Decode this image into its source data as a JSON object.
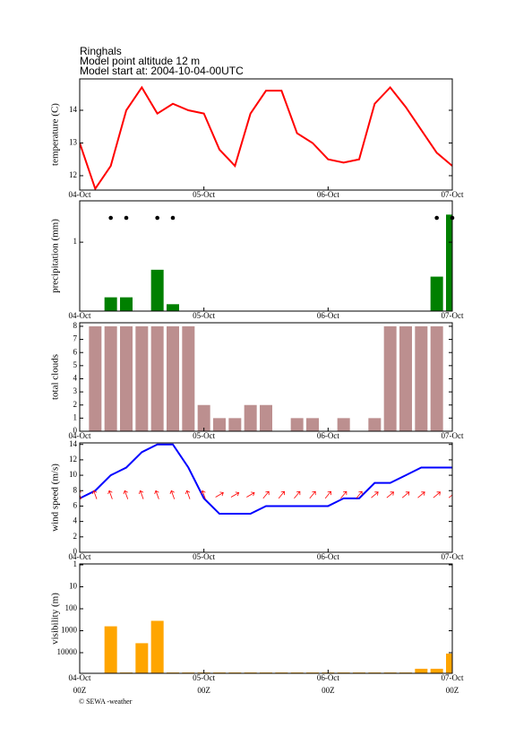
{
  "header": {
    "station": "Ringhals",
    "altitude": "Model point altitude  12 m",
    "start": "Model start at: 2004-10-04-00UTC"
  },
  "chart_data": [
    {
      "type": "line",
      "ylabel": "temperature (C)",
      "x": [
        0,
        3,
        6,
        9,
        12,
        15,
        18,
        21,
        24,
        27,
        30,
        33,
        36,
        39,
        42,
        45,
        48,
        51,
        54,
        57,
        60,
        63,
        66,
        69,
        72
      ],
      "values": [
        13.0,
        11.6,
        12.3,
        14.0,
        14.7,
        13.9,
        14.2,
        14.0,
        13.9,
        12.8,
        12.3,
        13.9,
        14.6,
        14.6,
        13.3,
        13.0,
        12.5,
        12.4,
        12.5,
        14.2,
        14.7,
        14.1,
        13.4,
        12.7,
        12.3
      ],
      "color": "#ff0000",
      "xlim": [
        0,
        72
      ],
      "xticks": [
        {
          "value": 0,
          "label": "04-Oct"
        },
        {
          "value": 24,
          "label": "05-Oct"
        },
        {
          "value": 48,
          "label": "06-Oct"
        },
        {
          "value": 72,
          "label": "07-Oct"
        }
      ],
      "ylim": [
        11.56,
        14.96
      ],
      "yticks": [
        12,
        13,
        14
      ]
    },
    {
      "type": "bar",
      "ylabel": "precipitation (mm)",
      "x": [
        6,
        9,
        15,
        18,
        69,
        72
      ],
      "values": [
        0.2,
        0.2,
        0.6,
        0.1,
        0.5,
        1.4
      ],
      "color": "#008000",
      "markers": true,
      "marker_color": "#000000",
      "xlim": [
        0,
        72
      ],
      "xticks": [
        {
          "value": 0,
          "label": "04-Oct"
        },
        {
          "value": 24,
          "label": "05-Oct"
        },
        {
          "value": 48,
          "label": "06-Oct"
        },
        {
          "value": 72,
          "label": "07-Oct"
        }
      ],
      "ylim": [
        0,
        1.6
      ],
      "yticks": [
        1
      ]
    },
    {
      "type": "bar",
      "ylabel": "total clouds",
      "x": [
        3,
        6,
        9,
        12,
        15,
        18,
        21,
        24,
        27,
        30,
        33,
        36,
        39,
        42,
        45,
        48,
        51,
        54,
        57,
        60,
        63,
        66,
        69
      ],
      "values": [
        8,
        8,
        8,
        8,
        8,
        8,
        8,
        2,
        1,
        1,
        2,
        2,
        0,
        1,
        1,
        0,
        1,
        0,
        1,
        8,
        8,
        8,
        8
      ],
      "color": "#bc8f8f",
      "xlim": [
        0,
        72
      ],
      "xticks": [
        {
          "value": 0,
          "label": "04-Oct"
        },
        {
          "value": 24,
          "label": "05-Oct"
        },
        {
          "value": 48,
          "label": "06-Oct"
        },
        {
          "value": 72,
          "label": "07-Oct"
        }
      ],
      "ylim": [
        0,
        8.27
      ],
      "yticks": [
        0,
        1,
        2,
        3,
        4,
        5,
        6,
        7,
        8
      ]
    },
    {
      "type": "line",
      "ylabel": "wind speed (m/s)",
      "x": [
        0,
        3,
        6,
        9,
        12,
        15,
        18,
        21,
        24,
        27,
        30,
        33,
        36,
        39,
        42,
        45,
        48,
        51,
        54,
        57,
        60,
        63,
        66,
        69,
        72
      ],
      "values": [
        7,
        8,
        10,
        11,
        13,
        14,
        14,
        11,
        7,
        5,
        5,
        5,
        6,
        6,
        6,
        6,
        6,
        7,
        7,
        9,
        9,
        10,
        11,
        11,
        11
      ],
      "color": "#0000ff",
      "direction": [
        340,
        340,
        340,
        340,
        340,
        340,
        340,
        340,
        340,
        60,
        60,
        60,
        40,
        40,
        40,
        40,
        40,
        40,
        40,
        50,
        50,
        50,
        50,
        50,
        50
      ],
      "direction_color": "#ff0000",
      "xlim": [
        0,
        72
      ],
      "xticks": [
        {
          "value": 0,
          "label": "04-Oct"
        },
        {
          "value": 24,
          "label": "05-Oct"
        },
        {
          "value": 48,
          "label": "06-Oct"
        },
        {
          "value": 72,
          "label": "07-Oct"
        }
      ],
      "ylim": [
        0,
        14.2
      ],
      "yticks": [
        0,
        2,
        4,
        6,
        8,
        10,
        12,
        14
      ]
    },
    {
      "type": "bar",
      "ylabel": "visibility (m)",
      "yscale": "log",
      "x": [
        6,
        9,
        12,
        15,
        18,
        21,
        24,
        27,
        30,
        33,
        36,
        39,
        42,
        45,
        48,
        51,
        54,
        57,
        60,
        63,
        66,
        69,
        72
      ],
      "values": [
        630,
        80000,
        3700,
        355,
        80000,
        80000,
        80000,
        80000,
        80000,
        80000,
        80000,
        80000,
        80000,
        80000,
        80000,
        80000,
        80000,
        80000,
        80000,
        80000,
        54000,
        54000,
        11000
      ],
      "color": "#ffa500",
      "xlim": [
        0,
        72
      ],
      "xticks": [
        {
          "value": 0,
          "label": "04-Oct"
        },
        {
          "value": 24,
          "label": "05-Oct"
        },
        {
          "value": 48,
          "label": "06-Oct"
        },
        {
          "value": 72,
          "label": "07-Oct"
        }
      ],
      "xtick_sublabels": [
        "00Z",
        "00Z",
        "00Z",
        "00Z"
      ],
      "ylim": [
        87000,
        0.91
      ],
      "yticks": [
        1,
        10,
        100,
        1000,
        10000
      ]
    }
  ],
  "credit": "© SEWA -weather"
}
